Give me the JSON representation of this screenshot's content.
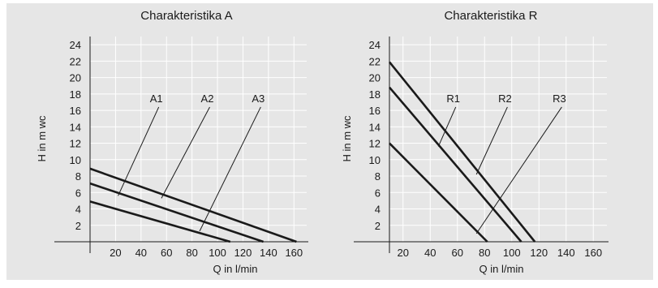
{
  "colors": {
    "panel_background": "#e6e6e6",
    "grid": "#ffffff",
    "curves": "#1a1a1a",
    "outer_background": "#ffffff"
  },
  "chart_data": [
    {
      "type": "line",
      "title": "Charakteristika A",
      "xlabel": "Q in l/min",
      "ylabel": "H in m wc",
      "xlim": [
        0,
        170
      ],
      "ylim": [
        0,
        25
      ],
      "xticks": [
        20,
        40,
        60,
        80,
        100,
        120,
        140,
        160
      ],
      "yticks": [
        2,
        4,
        6,
        8,
        10,
        12,
        14,
        16,
        18,
        20,
        22,
        24
      ],
      "grid": true,
      "series": [
        {
          "name": "A1",
          "x": [
            0,
            110
          ],
          "y": [
            4.9,
            0
          ]
        },
        {
          "name": "A2",
          "x": [
            0,
            136
          ],
          "y": [
            7.1,
            0
          ]
        },
        {
          "name": "A3",
          "x": [
            0,
            162
          ],
          "y": [
            8.9,
            0
          ]
        }
      ],
      "annotations": [
        {
          "text": "A1",
          "text_x": 52,
          "text_y": 17.0,
          "target_x": 22,
          "target_y": 5.6
        },
        {
          "text": "A2",
          "text_x": 92,
          "text_y": 17.0,
          "target_x": 56,
          "target_y": 5.3
        },
        {
          "text": "A3",
          "text_x": 132,
          "text_y": 17.0,
          "target_x": 86,
          "target_y": 1.3
        }
      ]
    },
    {
      "type": "line",
      "title": "Charakteristika R",
      "xlabel": "Q in l/min",
      "ylabel": "H in m wc",
      "xlim": [
        10,
        170
      ],
      "ylim": [
        0,
        25
      ],
      "xticks": [
        20,
        40,
        60,
        80,
        100,
        120,
        140,
        160
      ],
      "yticks": [
        2,
        4,
        6,
        8,
        10,
        12,
        14,
        16,
        18,
        20,
        22,
        24
      ],
      "grid": true,
      "series": [
        {
          "name": "R1",
          "x": [
            10,
            82
          ],
          "y": [
            12.0,
            0
          ]
        },
        {
          "name": "R2",
          "x": [
            10,
            107
          ],
          "y": [
            18.8,
            0
          ]
        },
        {
          "name": "R3",
          "x": [
            10,
            117
          ],
          "y": [
            21.9,
            0
          ]
        }
      ],
      "annotations": [
        {
          "text": "R1",
          "text_x": 57,
          "text_y": 17.0,
          "target_x": 46,
          "target_y": 11.6
        },
        {
          "text": "R2",
          "text_x": 95,
          "text_y": 17.0,
          "target_x": 74,
          "target_y": 8.2
        },
        {
          "text": "R3",
          "text_x": 135,
          "text_y": 17.0,
          "target_x": 74,
          "target_y": 1.0
        }
      ]
    }
  ]
}
